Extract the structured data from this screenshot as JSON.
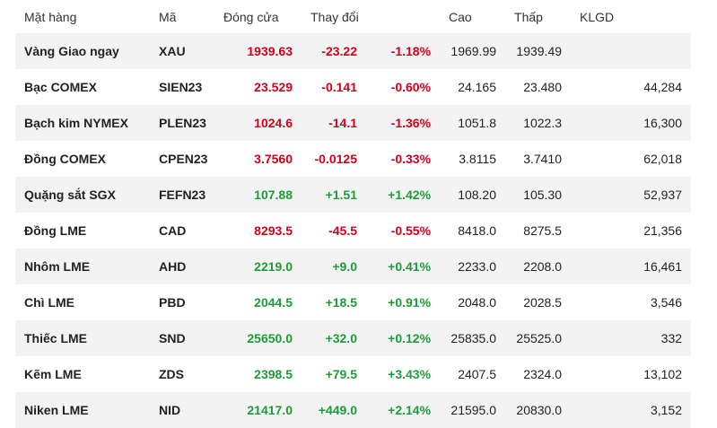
{
  "headers": {
    "name": "Mặt hàng",
    "code": "Mã",
    "close": "Đóng cửa",
    "change": "Thay đổi",
    "high": "Cao",
    "low": "Thấp",
    "volume": "KLGD"
  },
  "colors": {
    "down": "#d0021b",
    "up": "#1e9b3b"
  },
  "rows": [
    {
      "name": "Vàng Giao ngay",
      "code": "XAU",
      "close": "1939.63",
      "change": "-23.22",
      "pct": "-1.18%",
      "high": "1969.99",
      "low": "1939.49",
      "volume": "",
      "trend": "down"
    },
    {
      "name": "Bạc COMEX",
      "code": "SIEN23",
      "close": "23.529",
      "change": "-0.141",
      "pct": "-0.60%",
      "high": "24.165",
      "low": "23.480",
      "volume": "44,284",
      "trend": "down"
    },
    {
      "name": "Bạch kim NYMEX",
      "code": "PLEN23",
      "close": "1024.6",
      "change": "-14.1",
      "pct": "-1.36%",
      "high": "1051.8",
      "low": "1022.3",
      "volume": "16,300",
      "trend": "down"
    },
    {
      "name": "Đồng COMEX",
      "code": "CPEN23",
      "close": "3.7560",
      "change": "-0.0125",
      "pct": "-0.33%",
      "high": "3.8115",
      "low": "3.7410",
      "volume": "62,018",
      "trend": "down"
    },
    {
      "name": "Quặng sắt SGX",
      "code": "FEFN23",
      "close": "107.88",
      "change": "+1.51",
      "pct": "+1.42%",
      "high": "108.20",
      "low": "105.30",
      "volume": "52,937",
      "trend": "up"
    },
    {
      "name": "Đồng LME",
      "code": "CAD",
      "close": "8293.5",
      "change": "-45.5",
      "pct": "-0.55%",
      "high": "8418.0",
      "low": "8275.5",
      "volume": "21,356",
      "trend": "down"
    },
    {
      "name": "Nhôm LME",
      "code": "AHD",
      "close": "2219.0",
      "change": "+9.0",
      "pct": "+0.41%",
      "high": "2233.0",
      "low": "2208.0",
      "volume": "16,461",
      "trend": "up"
    },
    {
      "name": "Chì LME",
      "code": "PBD",
      "close": "2044.5",
      "change": "+18.5",
      "pct": "+0.91%",
      "high": "2048.0",
      "low": "2028.5",
      "volume": "3,546",
      "trend": "up"
    },
    {
      "name": "Thiếc LME",
      "code": "SND",
      "close": "25650.0",
      "change": "+32.0",
      "pct": "+0.12%",
      "high": "25835.0",
      "low": "25525.0",
      "volume": "332",
      "trend": "up"
    },
    {
      "name": "Kẽm LME",
      "code": "ZDS",
      "close": "2398.5",
      "change": "+79.5",
      "pct": "+3.43%",
      "high": "2407.5",
      "low": "2324.0",
      "volume": "13,102",
      "trend": "up"
    },
    {
      "name": "Niken LME",
      "code": "NID",
      "close": "21417.0",
      "change": "+449.0",
      "pct": "+2.14%",
      "high": "21595.0",
      "low": "20830.0",
      "volume": "3,152",
      "trend": "up"
    }
  ]
}
